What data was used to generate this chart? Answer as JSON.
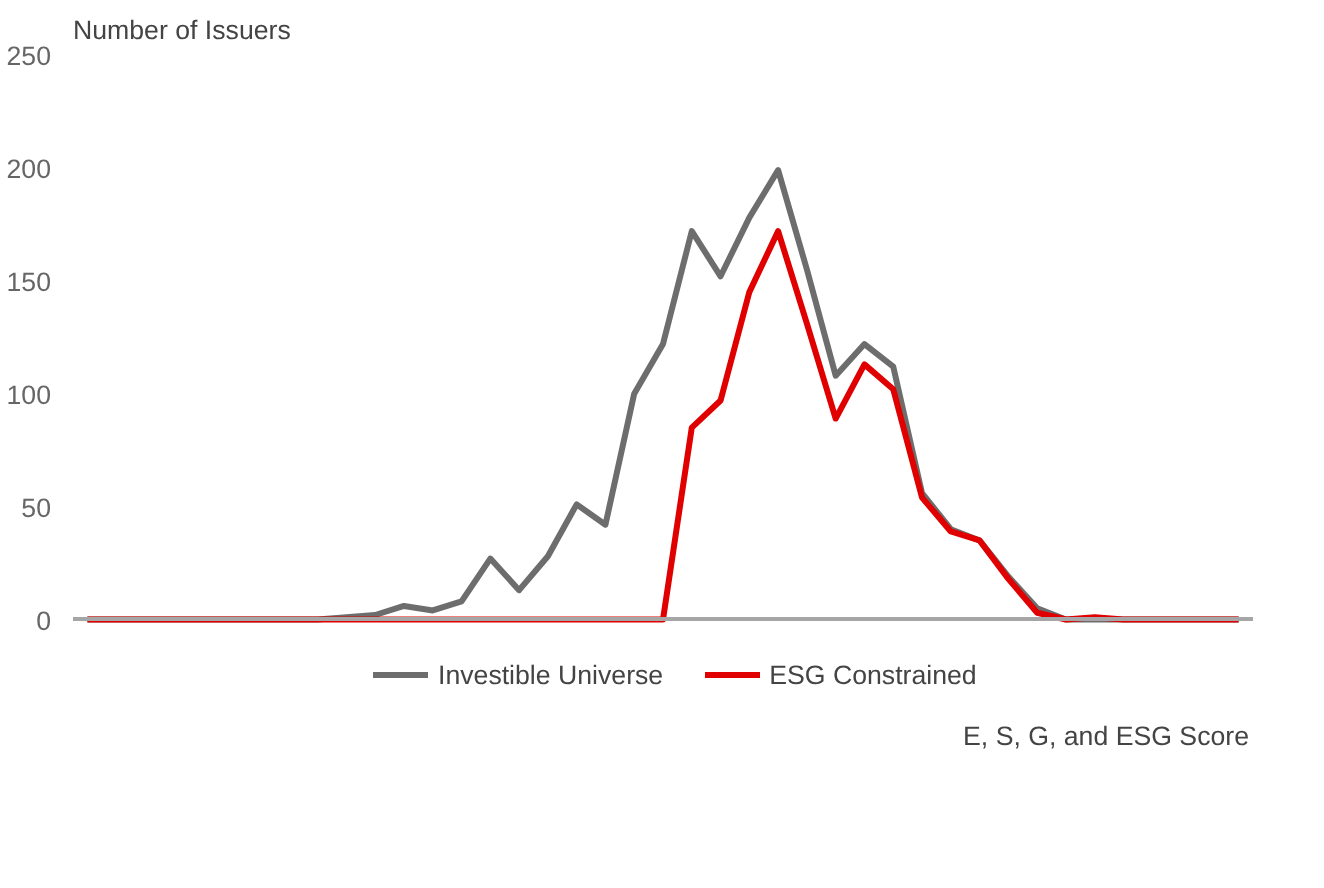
{
  "chart_data": {
    "type": "line",
    "ylabel": "Number of Issuers",
    "xlabel": "E, S, G, and ESG Score",
    "categories": [
      null,
      null,
      null,
      null,
      null,
      null,
      null,
      null,
      null,
      null,
      null,
      null,
      null,
      null,
      null,
      null,
      null,
      null,
      null,
      null,
      null,
      null,
      null,
      null,
      null,
      null,
      null,
      null,
      null,
      null,
      null,
      null,
      null,
      null,
      null,
      null,
      null,
      null,
      null,
      null,
      null
    ],
    "series": [
      {
        "name": "Investible Universe",
        "color": "#6d6d6d",
        "values": [
          0,
          0,
          0,
          0,
          0,
          0,
          0,
          0,
          0,
          1,
          2,
          6,
          4,
          8,
          27,
          13,
          28,
          51,
          42,
          100,
          122,
          172,
          152,
          178,
          199,
          155,
          108,
          122,
          112,
          56,
          40,
          35,
          19,
          5,
          0,
          0,
          0,
          0,
          0,
          0,
          0
        ]
      },
      {
        "name": "ESG Constrained",
        "color": "#e00000",
        "values": [
          0,
          0,
          0,
          0,
          0,
          0,
          0,
          0,
          0,
          0,
          0,
          0,
          0,
          0,
          0,
          0,
          0,
          0,
          0,
          0,
          0,
          85,
          97,
          145,
          172,
          131,
          89,
          113,
          102,
          54,
          39,
          35,
          18,
          3,
          0,
          1,
          0,
          0,
          0,
          0,
          0
        ]
      }
    ],
    "ylim": [
      0,
      250
    ],
    "yticks": [
      0,
      50,
      100,
      150,
      200,
      250
    ],
    "tick_labels": "y",
    "grid": false,
    "legend": "bottom"
  }
}
